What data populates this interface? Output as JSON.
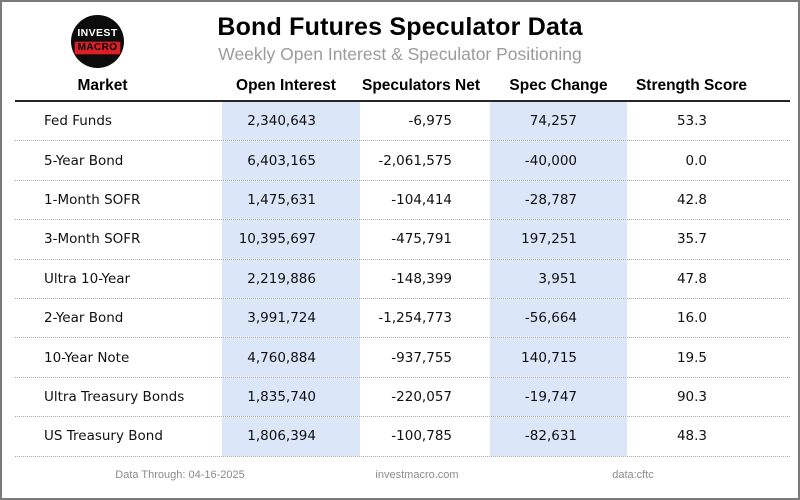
{
  "header": {
    "title": "Bond Futures Speculator Data",
    "subtitle": "Weekly Open Interest & Speculator Positioning",
    "logo": {
      "line1": "INVEST",
      "line2": "MACRO"
    }
  },
  "table": {
    "columns": [
      "Market",
      "Open Interest",
      "Speculators Net",
      "Spec Change",
      "Strength Score"
    ],
    "rows": [
      {
        "market": "Fed Funds",
        "open_interest": "2,340,643",
        "speculators_net": "-6,975",
        "spec_change": "74,257",
        "strength_score": "53.3"
      },
      {
        "market": "5-Year Bond",
        "open_interest": "6,403,165",
        "speculators_net": "-2,061,575",
        "spec_change": "-40,000",
        "strength_score": "0.0"
      },
      {
        "market": "1-Month SOFR",
        "open_interest": "1,475,631",
        "speculators_net": "-104,414",
        "spec_change": "-28,787",
        "strength_score": "42.8"
      },
      {
        "market": "3-Month SOFR",
        "open_interest": "10,395,697",
        "speculators_net": "-475,791",
        "spec_change": "197,251",
        "strength_score": "35.7"
      },
      {
        "market": "Ultra 10-Year",
        "open_interest": "2,219,886",
        "speculators_net": "-148,399",
        "spec_change": "3,951",
        "strength_score": "47.8"
      },
      {
        "market": "2-Year Bond",
        "open_interest": "3,991,724",
        "speculators_net": "-1,254,773",
        "spec_change": "-56,664",
        "strength_score": "16.0"
      },
      {
        "market": "10-Year Note",
        "open_interest": "4,760,884",
        "speculators_net": "-937,755",
        "spec_change": "140,715",
        "strength_score": "19.5"
      },
      {
        "market": "Ultra Treasury Bonds",
        "open_interest": "1,835,740",
        "speculators_net": "-220,057",
        "spec_change": "-19,747",
        "strength_score": "90.3"
      },
      {
        "market": "US Treasury Bond",
        "open_interest": "1,806,394",
        "speculators_net": "-100,785",
        "spec_change": "-82,631",
        "strength_score": "48.3"
      }
    ]
  },
  "footer": {
    "data_through": "Data Through: 04-16-2025",
    "site": "investmacro.com",
    "source": "data:cftc"
  },
  "colors": {
    "highlight_column": "#dbe6f8",
    "accent_red": "#da2127",
    "subtitle_gray": "#9b9b9b",
    "footer_gray": "#8b8b8b",
    "border_gray": "#7b7b7b"
  },
  "chart_data": {
    "type": "table",
    "title": "Bond Futures Speculator Data",
    "subtitle": "Weekly Open Interest & Speculator Positioning",
    "columns": [
      "Market",
      "Open Interest",
      "Speculators Net",
      "Spec Change",
      "Strength Score"
    ],
    "rows": [
      [
        "Fed Funds",
        2340643,
        -6975,
        74257,
        53.3
      ],
      [
        "5-Year Bond",
        6403165,
        -2061575,
        -40000,
        0.0
      ],
      [
        "1-Month SOFR",
        1475631,
        -104414,
        -28787,
        42.8
      ],
      [
        "3-Month SOFR",
        10395697,
        -475791,
        197251,
        35.7
      ],
      [
        "Ultra 10-Year",
        2219886,
        -148399,
        3951,
        47.8
      ],
      [
        "2-Year Bond",
        3991724,
        -1254773,
        -56664,
        16.0
      ],
      [
        "10-Year Note",
        4760884,
        -937755,
        140715,
        19.5
      ],
      [
        "Ultra Treasury Bonds",
        1835740,
        -220057,
        -19747,
        90.3
      ],
      [
        "US Treasury Bond",
        1806394,
        -100785,
        -82631,
        48.3
      ]
    ],
    "highlighted_columns": [
      "Open Interest",
      "Spec Change"
    ],
    "data_through": "04-16-2025",
    "source": "cftc"
  }
}
